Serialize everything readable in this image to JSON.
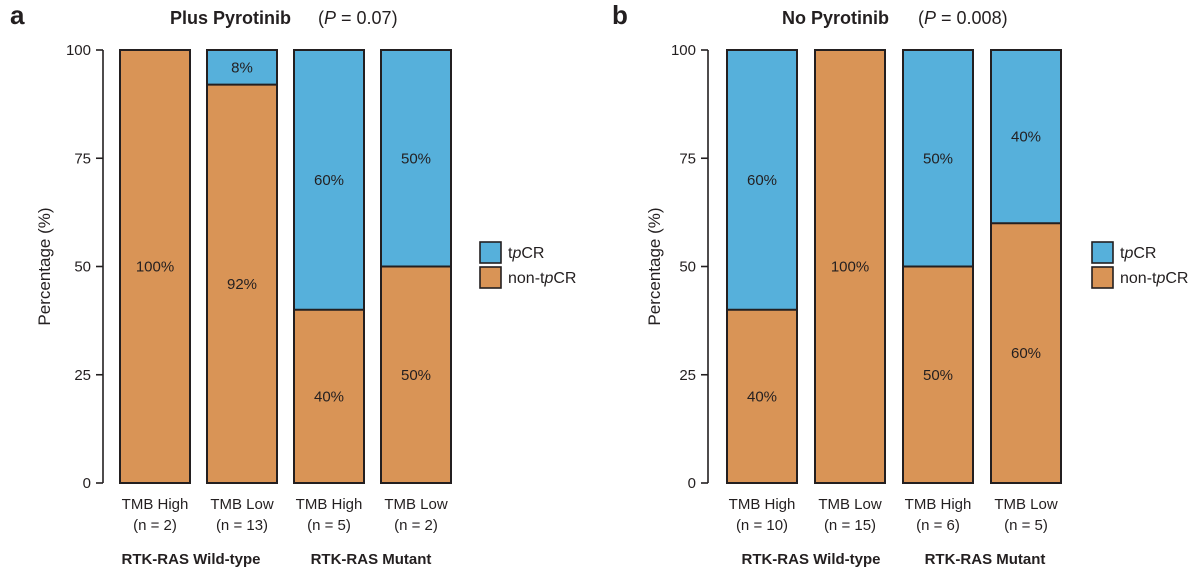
{
  "chart_data": [
    {
      "type": "bar",
      "stacked": true,
      "panel_letter": "a",
      "title": "Plus Pyrotinib",
      "p_value_text": "(P = 0.07)",
      "ylabel": "Percentage (%)",
      "ylim": [
        0,
        100
      ],
      "yticks": [
        "0",
        "25",
        "50",
        "75",
        "100"
      ],
      "categories": [
        {
          "label": "TMB High",
          "n": "(n = 2)"
        },
        {
          "label": "TMB Low",
          "n": "(n = 13)"
        },
        {
          "label": "TMB High",
          "n": "(n = 5)"
        },
        {
          "label": "TMB Low",
          "n": "(n = 2)"
        }
      ],
      "groups": [
        "RTK-RAS Wild-type",
        "RTK-RAS Mutant"
      ],
      "series": [
        {
          "name": "non-tpCR",
          "values": [
            100,
            92,
            40,
            50
          ],
          "labels": [
            "100%",
            "92%",
            "40%",
            "50%"
          ]
        },
        {
          "name": "tpCR",
          "values": [
            0,
            8,
            60,
            50
          ],
          "labels": [
            "",
            "8%",
            "60%",
            "50%"
          ]
        }
      ],
      "legend": [
        "tpCR",
        "non-tpCR"
      ]
    },
    {
      "type": "bar",
      "stacked": true,
      "panel_letter": "b",
      "title": "No Pyrotinib",
      "p_value_text": "(P = 0.008)",
      "ylabel": "Percentage (%)",
      "ylim": [
        0,
        100
      ],
      "yticks": [
        "0",
        "25",
        "50",
        "75",
        "100"
      ],
      "categories": [
        {
          "label": "TMB High",
          "n": "(n = 10)"
        },
        {
          "label": "TMB Low",
          "n": "(n = 15)"
        },
        {
          "label": "TMB High",
          "n": "(n = 6)"
        },
        {
          "label": "TMB Low",
          "n": "(n = 5)"
        }
      ],
      "groups": [
        "RTK-RAS Wild-type",
        "RTK-RAS Mutant"
      ],
      "series": [
        {
          "name": "non-tpCR",
          "values": [
            40,
            100,
            50,
            60
          ],
          "labels": [
            "40%",
            "100%",
            "50%",
            "60%"
          ]
        },
        {
          "name": "tpCR",
          "values": [
            60,
            0,
            50,
            40
          ],
          "labels": [
            "60%",
            "",
            "50%",
            "40%"
          ]
        }
      ],
      "legend": [
        "tpCR",
        "non-tpCR"
      ]
    }
  ],
  "colors": {
    "tpCR": "#56b0db",
    "non-tpCR": "#d99456",
    "outline": "#231f20"
  }
}
